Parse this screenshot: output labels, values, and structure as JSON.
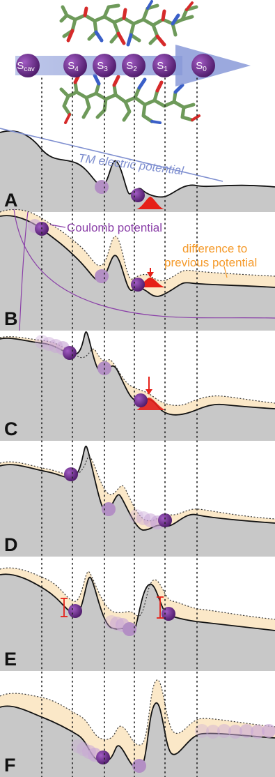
{
  "sites": [
    {
      "main": "S",
      "sub": "cav"
    },
    {
      "main": "S",
      "sub": "4"
    },
    {
      "main": "S",
      "sub": "3"
    },
    {
      "main": "S",
      "sub": "2"
    },
    {
      "main": "S",
      "sub": "1"
    },
    {
      "main": "S",
      "sub": "0"
    }
  ],
  "panels": [
    "A",
    "B",
    "C",
    "D",
    "E",
    "F"
  ],
  "annotations": {
    "tm_electric_potential": "TM electric potential",
    "coulomb_potential": "Coulomb potential",
    "difference_line1": "difference to",
    "difference_line2": "previous potential"
  },
  "colors": {
    "ion": "#6b2a8a",
    "ion_light": "#b38fc4",
    "ion_faded": "#c9a7d6",
    "landscape_fill": "#c8c8c8",
    "difference_fill": "#fbe8c8",
    "tm_line": "#7f8fd0",
    "coulomb": "#8a3fa8",
    "difference_text": "#f59a2a",
    "highlight": "#e62018",
    "arrow_band": "#98a6e2",
    "molecule": "#6e9a5a"
  }
}
